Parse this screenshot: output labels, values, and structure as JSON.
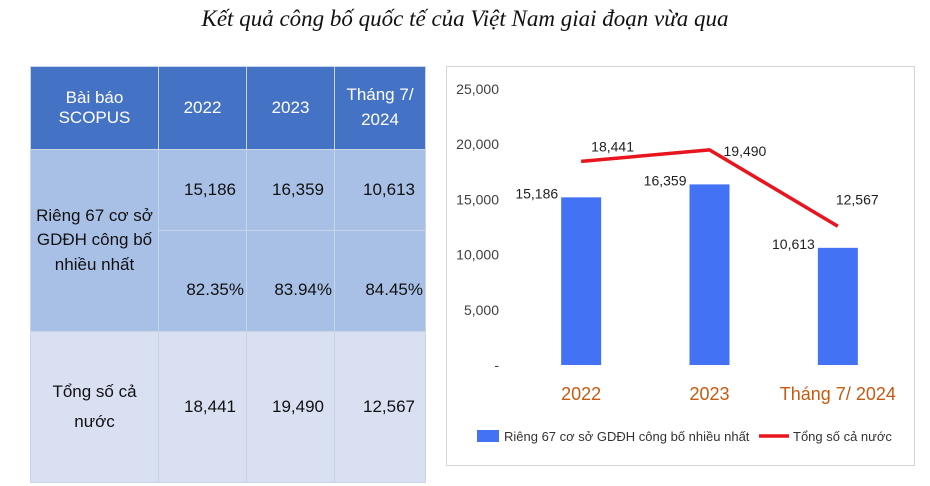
{
  "page_title": "Kết quả công bố quốc tế của Việt Nam giai đoạn vừa qua",
  "table": {
    "headers": [
      "Bài báo SCOPUS",
      "2022",
      "2023",
      "Tháng 7/ 2024"
    ],
    "row_group_label": "Riêng 67 cơ sở GDĐH công bố nhiều nhất",
    "counts": [
      "15,186",
      "16,359",
      "10,613"
    ],
    "percents": [
      "82.35%",
      "83.94%",
      "84.45%"
    ],
    "total_label": "Tổng số cả nước",
    "totals": [
      "18,441",
      "19,490",
      "12,567"
    ]
  },
  "chart_data": {
    "type": "bar",
    "categories": [
      "2022",
      "2023",
      "Tháng 7/ 2024"
    ],
    "series": [
      {
        "name": "Riêng 67 cơ sở GDĐH công bố nhiều nhất",
        "kind": "bar",
        "color": "#4472f4",
        "values": [
          15186,
          16359,
          10613
        ]
      },
      {
        "name": "Tổng số cả nước",
        "kind": "line",
        "color": "#e8141e",
        "values": [
          18441,
          19490,
          12567
        ]
      }
    ],
    "bar_labels": [
      "15,186",
      "16,359",
      "10,613"
    ],
    "line_labels": [
      "18,441",
      "19,490",
      "12,567"
    ],
    "y_ticks": [
      0,
      5000,
      10000,
      15000,
      20000,
      25000
    ],
    "y_tick_labels": [
      "-",
      "5,000",
      "10,000",
      "15,000",
      "20,000",
      "25,000"
    ],
    "ylim": [
      0,
      25000
    ],
    "category_label_color": "#c55a11",
    "grid": false,
    "legend_position": "bottom"
  }
}
